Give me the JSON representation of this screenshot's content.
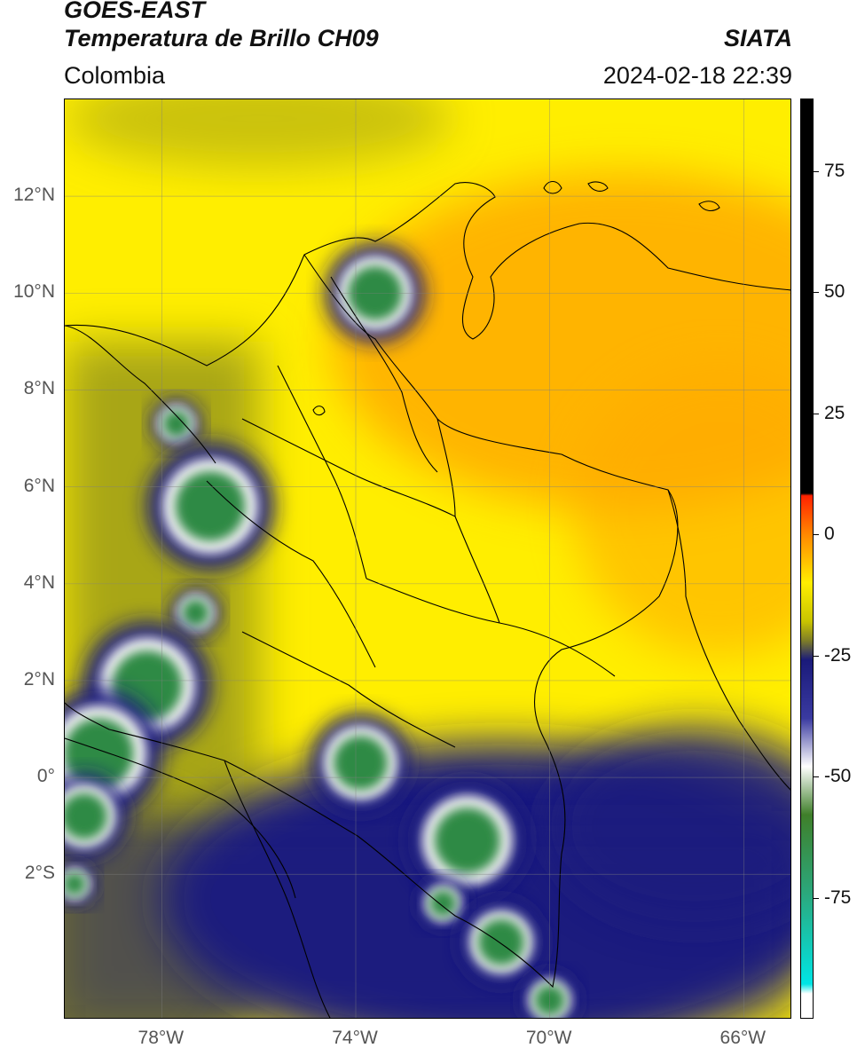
{
  "header": {
    "agency": "GOES-EAST",
    "product": "Temperatura de Brillo CH09",
    "region": "Colombia",
    "source": "SIATA",
    "datetime": "2024-02-18 22:39"
  },
  "map": {
    "extent": {
      "lon": [
        -80,
        -65
      ],
      "lat": [
        -5,
        14
      ]
    },
    "lat_labels": [
      {
        "label": "12°N",
        "value": 12
      },
      {
        "label": "10°N",
        "value": 10
      },
      {
        "label": "8°N",
        "value": 8
      },
      {
        "label": "6°N",
        "value": 6
      },
      {
        "label": "4°N",
        "value": 4
      },
      {
        "label": "2°N",
        "value": 2
      },
      {
        "label": "0°",
        "value": 0
      },
      {
        "label": "2°S",
        "value": -2
      }
    ],
    "lon_labels": [
      {
        "label": "78°W",
        "value": -78
      },
      {
        "label": "74°W",
        "value": -74
      },
      {
        "label": "70°W",
        "value": -70
      },
      {
        "label": "66°W",
        "value": -66
      }
    ],
    "cloud_cores": [
      {
        "lon": -73.6,
        "lat": 10.0,
        "r": 0.7
      },
      {
        "lon": -77.7,
        "lat": 7.3,
        "r": 0.35
      },
      {
        "lon": -77.0,
        "lat": 5.6,
        "r": 0.9
      },
      {
        "lon": -77.3,
        "lat": 3.4,
        "r": 0.35
      },
      {
        "lon": -78.3,
        "lat": 1.9,
        "r": 0.9
      },
      {
        "lon": -79.3,
        "lat": 0.5,
        "r": 0.9
      },
      {
        "lon": -79.6,
        "lat": -0.8,
        "r": 0.6
      },
      {
        "lon": -73.9,
        "lat": 0.3,
        "r": 0.7
      },
      {
        "lon": -71.7,
        "lat": -1.3,
        "r": 0.85
      },
      {
        "lon": -72.2,
        "lat": -2.6,
        "r": 0.35
      },
      {
        "lon": -71.0,
        "lat": -3.4,
        "r": 0.6
      },
      {
        "lon": -70.0,
        "lat": -4.6,
        "r": 0.4
      },
      {
        "lon": -79.8,
        "lat": -2.2,
        "r": 0.3
      }
    ],
    "colors": {
      "warm": "#ffee00",
      "orange": "#ffaa00",
      "olive": "#a8a618",
      "dark_olive": "#6e6d30",
      "navy": "#1c1c7e",
      "green": "#2f8a45",
      "teal": "#2aa07a",
      "white": "#f2f2f2"
    }
  },
  "colorbar": {
    "range": [
      -100,
      90
    ],
    "ticks": [
      {
        "label": "75",
        "value": 75
      },
      {
        "label": "50",
        "value": 50
      },
      {
        "label": "25",
        "value": 25
      },
      {
        "label": "0",
        "value": 0
      },
      {
        "label": "-25",
        "value": -25
      },
      {
        "label": "-50",
        "value": -50
      },
      {
        "label": "-75",
        "value": -75
      }
    ],
    "stops": [
      {
        "value": 90,
        "color": "#000000"
      },
      {
        "value": 8.5,
        "color": "#000000"
      },
      {
        "value": 8,
        "color": "#ff2200"
      },
      {
        "value": 0,
        "color": "#ff8800"
      },
      {
        "value": -10,
        "color": "#ffee00"
      },
      {
        "value": -18,
        "color": "#c9c400"
      },
      {
        "value": -22,
        "color": "#7e7d28"
      },
      {
        "value": -26,
        "color": "#1a1a7a"
      },
      {
        "value": -38,
        "color": "#3a3aa0"
      },
      {
        "value": -48,
        "color": "#ffffff"
      },
      {
        "value": -58,
        "color": "#3f7f2a"
      },
      {
        "value": -75,
        "color": "#2aaa80"
      },
      {
        "value": -93,
        "color": "#00e5e5"
      },
      {
        "value": -95,
        "color": "#ffffff"
      },
      {
        "value": -100,
        "color": "#ffffff"
      }
    ]
  }
}
